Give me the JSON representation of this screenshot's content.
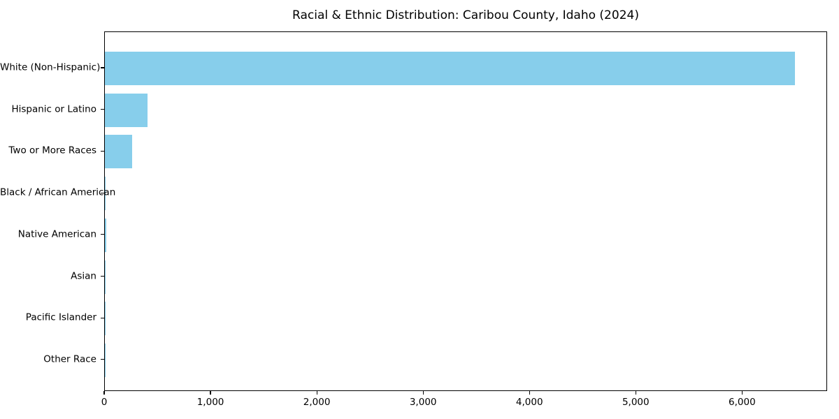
{
  "figure": {
    "background": "#ffffff",
    "text_color": "#000000"
  },
  "chart_data": {
    "type": "bar",
    "orientation": "horizontal",
    "title": "Racial & Ethnic Distribution: Caribou County, Idaho (2024)",
    "categories": [
      "White (Non-Hispanic)",
      "Hispanic or Latino",
      "Two or More Races",
      "Black / African American",
      "Native American",
      "Asian",
      "Pacific Islander",
      "Other Race"
    ],
    "values": [
      6490,
      400,
      255,
      8,
      12,
      4,
      1,
      2
    ],
    "bar_color": "#87CEEB",
    "xlabel": "",
    "ylabel": "",
    "xlim": [
      0,
      6800
    ],
    "xticks": [
      0,
      1000,
      2000,
      3000,
      4000,
      5000,
      6000
    ],
    "xtick_labels": [
      "0",
      "1,000",
      "2,000",
      "3,000",
      "4,000",
      "5,000",
      "6,000"
    ],
    "grid": false,
    "legend": null,
    "plot_border": "#000000"
  }
}
